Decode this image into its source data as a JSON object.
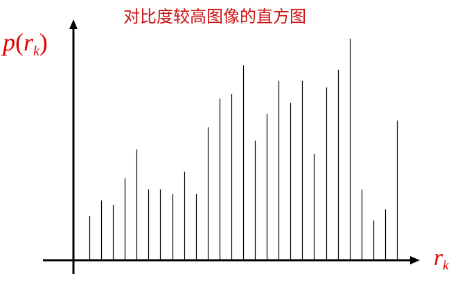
{
  "chart_data": {
    "type": "bar",
    "title": "对比度较高图像的直方图",
    "ylabel": {
      "func": "p",
      "open": "(",
      "var": "r",
      "sub": "k",
      "close": ")"
    },
    "xlabel": {
      "var": "r",
      "sub": "k"
    },
    "values": [
      0.2,
      0.27,
      0.25,
      0.37,
      0.5,
      0.32,
      0.32,
      0.3,
      0.4,
      0.3,
      0.6,
      0.73,
      0.75,
      0.88,
      0.54,
      0.66,
      0.81,
      0.71,
      0.81,
      0.48,
      0.78,
      0.86,
      1.0,
      0.32,
      0.18,
      0.23,
      0.63
    ],
    "ylim": [
      0,
      1.05
    ],
    "grid": false
  }
}
